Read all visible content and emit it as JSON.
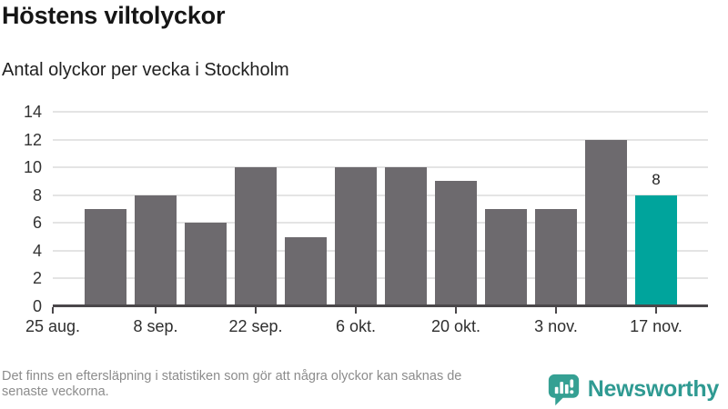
{
  "header": {
    "title": "Höstens viltolyckor",
    "subtitle": "Antal olyckor per vecka i Stockholm"
  },
  "chart_data": {
    "type": "bar",
    "title": "Höstens viltolyckor",
    "subtitle": "Antal olyckor per vecka i Stockholm",
    "values": [
      7,
      8,
      6,
      10,
      5,
      10,
      10,
      9,
      7,
      7,
      12,
      8
    ],
    "highlight_index": 11,
    "highlight_value_label": "8",
    "x_tick_labels": [
      "25 aug.",
      "8 sep.",
      "22 sep.",
      "6 okt.",
      "20 okt.",
      "3 nov.",
      "17 nov."
    ],
    "y_ticks": [
      0,
      2,
      4,
      6,
      8,
      10,
      12,
      14
    ],
    "ylim": [
      0,
      14
    ],
    "grid": true,
    "legend": "none",
    "bar_color": "#6d6a6e",
    "highlight_color": "#00a49c",
    "gridline_color": "#e4e4e4",
    "axis_color": "#4a474a"
  },
  "footer": {
    "lines": [
      "Det finns en eftersläpning i statistiken som gör att några olyckor kan saknas de",
      "senaste veckorna."
    ],
    "brand": {
      "name": "Newsworthy",
      "color": "#2f9a92",
      "icon": "newsworthy-bubble-chart-icon"
    }
  }
}
